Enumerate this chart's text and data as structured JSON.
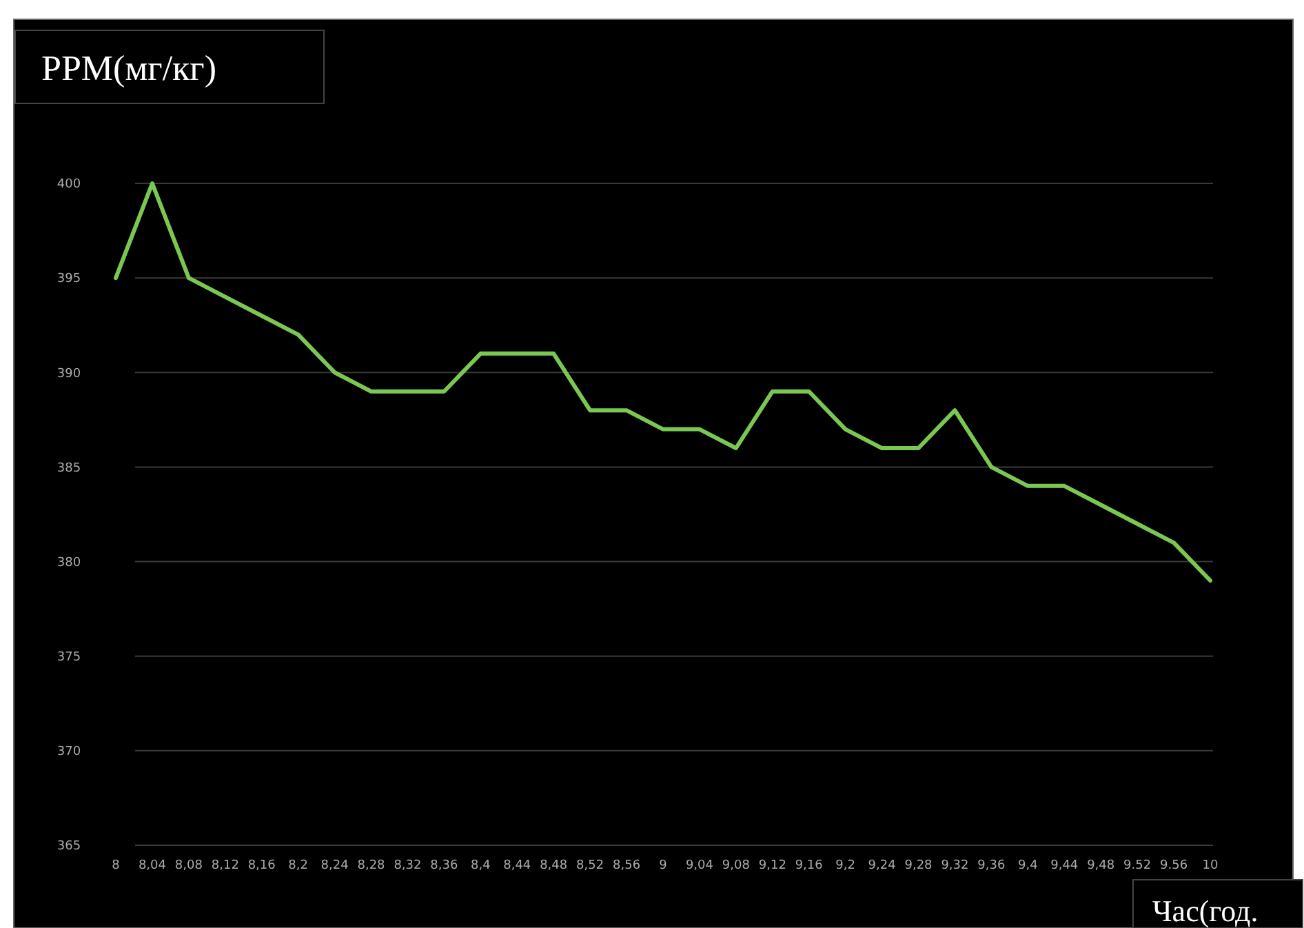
{
  "chart_data": {
    "type": "line",
    "ylabel": "PPM(мг/кг)",
    "xlabel": "Час(год.",
    "categories": [
      "8",
      "8,04",
      "8,08",
      "8,12",
      "8,16",
      "8,2",
      "8,24",
      "8,28",
      "8,32",
      "8,36",
      "8,4",
      "8,44",
      "8,48",
      "8,52",
      "8,56",
      "9",
      "9,04",
      "9,08",
      "9,12",
      "9,16",
      "9,2",
      "9,24",
      "9,28",
      "9,32",
      "9,36",
      "9,4",
      "9,44",
      "9,48",
      "9.52",
      "9.56",
      "10"
    ],
    "series": [
      {
        "color": "#7ac851",
        "values": [
          395,
          400,
          395,
          394,
          393,
          392,
          390,
          389,
          389,
          389,
          391,
          391,
          391,
          388,
          388,
          387,
          387,
          386,
          389,
          389,
          387,
          386,
          386,
          388,
          385,
          384,
          384,
          383,
          382,
          381,
          379
        ]
      }
    ],
    "ylim": [
      365,
      400
    ],
    "yticks": [
      365,
      370,
      375,
      380,
      385,
      390,
      395,
      400
    ],
    "grid": "y",
    "marker": "none",
    "line_style": "solid"
  }
}
